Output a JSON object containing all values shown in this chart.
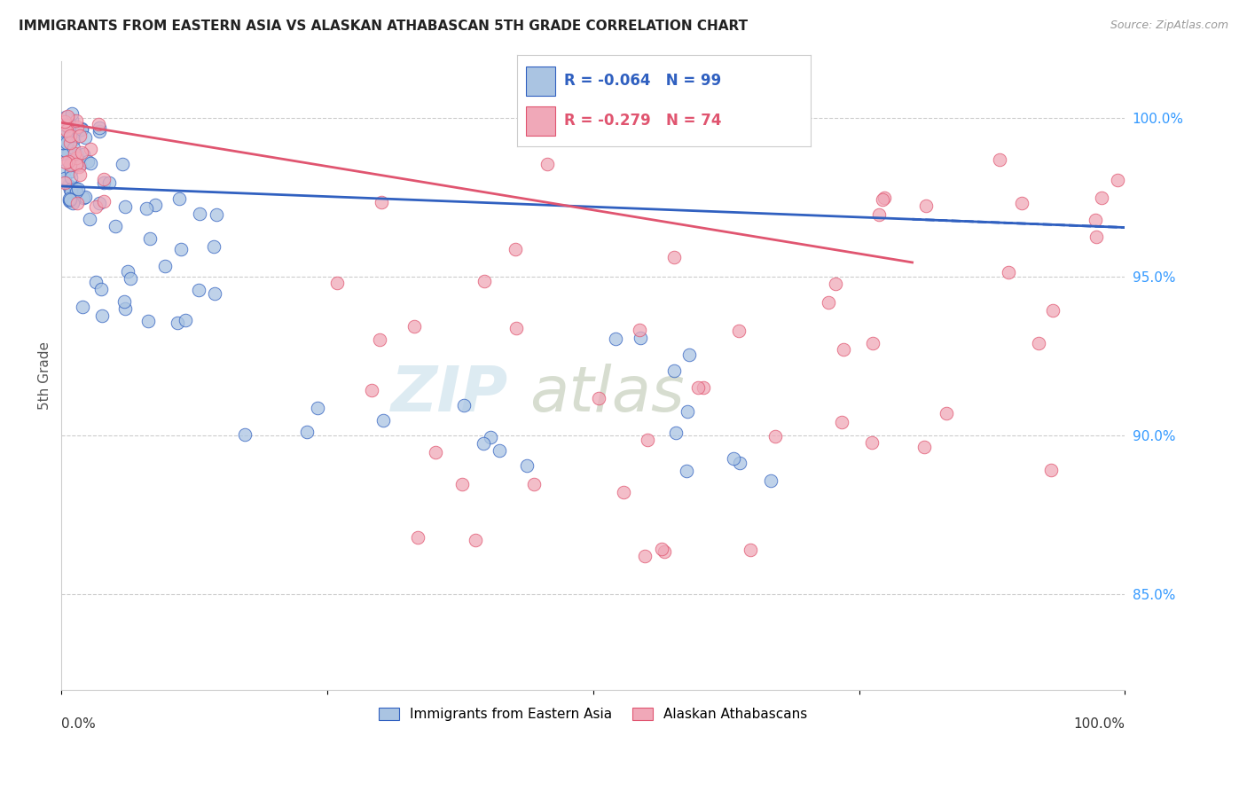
{
  "title": "IMMIGRANTS FROM EASTERN ASIA VS ALASKAN ATHABASCAN 5TH GRADE CORRELATION CHART",
  "source": "Source: ZipAtlas.com",
  "ylabel": "5th Grade",
  "legend_blue_label": "Immigrants from Eastern Asia",
  "legend_pink_label": "Alaskan Athabascans",
  "R_blue": -0.064,
  "N_blue": 99,
  "R_pink": -0.279,
  "N_pink": 74,
  "blue_color": "#aac4e2",
  "pink_color": "#f0a8b8",
  "blue_line_color": "#3060c0",
  "pink_line_color": "#e05570",
  "watermark_zip": "ZIP",
  "watermark_atlas": "atlas",
  "ylim_low": 0.82,
  "ylim_high": 1.018,
  "xlim_low": 0.0,
  "xlim_high": 1.0,
  "right_yticks": [
    1.0,
    0.95,
    0.9,
    0.85
  ],
  "right_yticklabels": [
    "100.0%",
    "95.0%",
    "90.0%",
    "85.0%"
  ],
  "blue_trend_intercept": 0.9785,
  "blue_trend_slope": -0.013,
  "pink_trend_intercept": 0.9985,
  "pink_trend_slope": -0.055
}
